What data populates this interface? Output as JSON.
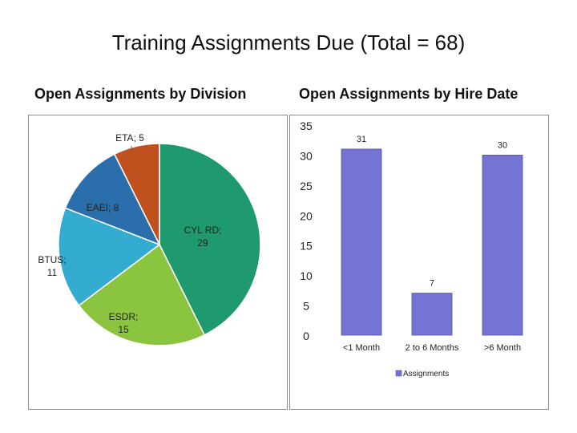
{
  "title": "Training Assignments Due (Total = 68)",
  "chart_data": [
    {
      "type": "pie",
      "title": "Open Assignments by Division",
      "slices": [
        {
          "label": "CYL RD",
          "value": 29,
          "display": "CYL RD; 29",
          "color": "#1f9a6e"
        },
        {
          "label": "ESDR",
          "value": 15,
          "display": "ESDR; 15",
          "color": "#8bc43f"
        },
        {
          "label": "BTUS",
          "value": 11,
          "display": "BTUS; 11",
          "color": "#34acd1"
        },
        {
          "label": "EAEI",
          "value": 8,
          "display": "EAEI; 8",
          "color": "#2a6fab"
        },
        {
          "label": "ETA",
          "value": 5,
          "display": "ETA; 5",
          "color": "#c1501f"
        }
      ]
    },
    {
      "type": "bar",
      "title": "Open Assignments by Hire Date",
      "categories": [
        "<1 Month",
        "2 to 6 Months",
        ">6 Month"
      ],
      "series": [
        {
          "name": "Assignments",
          "values": [
            31,
            7,
            30
          ],
          "color": "#7474d4"
        }
      ],
      "ylim": [
        0,
        35
      ],
      "yticks": [
        0,
        5,
        10,
        15,
        20,
        25,
        30,
        35
      ],
      "legend": "bottom"
    }
  ]
}
